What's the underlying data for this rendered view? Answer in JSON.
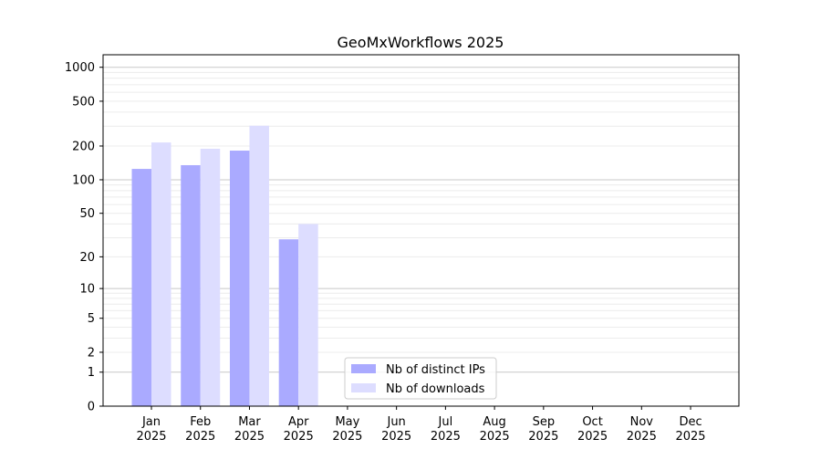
{
  "chart_data": {
    "type": "bar",
    "title": "GeoMxWorkflows 2025",
    "xlabel": "",
    "ylabel": "",
    "yscale": "log(1+y)",
    "ylim": [
      0,
      1200
    ],
    "yticks": [
      0,
      1,
      2,
      5,
      10,
      20,
      50,
      100,
      200,
      500,
      1000
    ],
    "categories": [
      {
        "month": "Jan",
        "year": "2025"
      },
      {
        "month": "Feb",
        "year": "2025"
      },
      {
        "month": "Mar",
        "year": "2025"
      },
      {
        "month": "Apr",
        "year": "2025"
      },
      {
        "month": "May",
        "year": "2025"
      },
      {
        "month": "Jun",
        "year": "2025"
      },
      {
        "month": "Jul",
        "year": "2025"
      },
      {
        "month": "Aug",
        "year": "2025"
      },
      {
        "month": "Sep",
        "year": "2025"
      },
      {
        "month": "Oct",
        "year": "2025"
      },
      {
        "month": "Nov",
        "year": "2025"
      },
      {
        "month": "Dec",
        "year": "2025"
      }
    ],
    "series": [
      {
        "name": "Nb of distinct IPs",
        "color": "#aaaaff",
        "values": [
          125,
          135,
          182,
          29,
          0,
          0,
          0,
          0,
          0,
          0,
          0,
          0
        ]
      },
      {
        "name": "Nb of downloads",
        "color": "#ddddff",
        "values": [
          215,
          189,
          303,
          40,
          0,
          0,
          0,
          0,
          0,
          0,
          0,
          0
        ]
      }
    ],
    "grid": true,
    "legend": "lower-center"
  }
}
